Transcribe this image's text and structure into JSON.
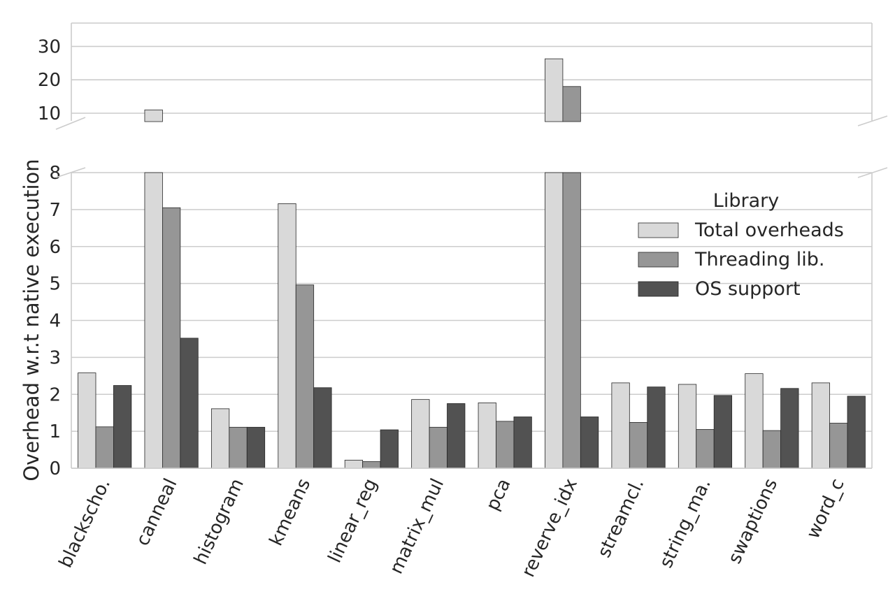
{
  "chart_data": {
    "type": "bar",
    "ylabel": "Overhead w.r.t native execution",
    "xlabel": "",
    "categories": [
      "blackscho.",
      "canneal",
      "histogram",
      "kmeans",
      "linear_reg",
      "matrix_mul",
      "pca",
      "reverve_idx",
      "streamcl.",
      "string_ma.",
      "swaptions",
      "word_c"
    ],
    "series": [
      {
        "name": "Total overheads",
        "color": "#d9d9d9",
        "values": [
          2.58,
          11.0,
          1.61,
          7.16,
          0.22,
          1.86,
          1.77,
          26.3,
          2.31,
          2.27,
          2.56,
          2.31
        ]
      },
      {
        "name": "Threading lib.",
        "color": "#969696",
        "values": [
          1.12,
          7.05,
          1.11,
          4.96,
          0.18,
          1.11,
          1.27,
          18.0,
          1.24,
          1.05,
          1.02,
          1.22
        ]
      },
      {
        "name": "OS support",
        "color": "#525252",
        "values": [
          2.24,
          3.52,
          1.11,
          2.18,
          1.04,
          1.75,
          1.39,
          1.39,
          2.2,
          1.97,
          2.16,
          1.95
        ]
      }
    ],
    "axis_break": true,
    "upper_panel": {
      "ylim": [
        7.7,
        37
      ],
      "yticks": [
        10,
        20,
        30
      ]
    },
    "lower_panel": {
      "ylim": [
        0,
        8
      ],
      "yticks": [
        0,
        1,
        2,
        3,
        4,
        5,
        6,
        7,
        8
      ]
    },
    "legend": {
      "title": "Library",
      "position": "right",
      "entries": [
        "Total overheads",
        "Threading lib.",
        "OS support"
      ]
    },
    "grid": "horizontal",
    "xtick_rotation": -65
  }
}
